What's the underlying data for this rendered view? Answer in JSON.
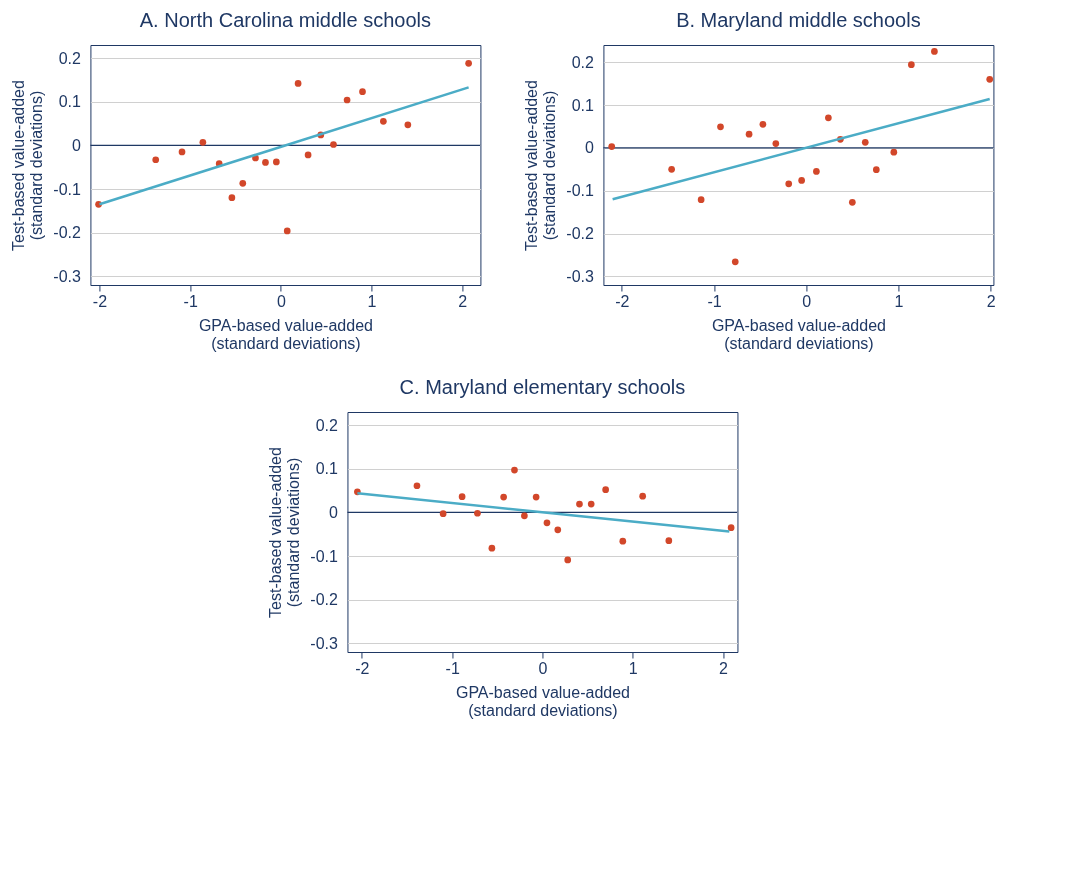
{
  "chart_data": [
    {
      "type": "scatter",
      "title": "A. North Carolina middle schools",
      "xlabel": "GPA-based value-added\n(standard deviations)",
      "ylabel": "Test-based value-added\n(standard deviations)",
      "xlim": [
        -2.1,
        2.2
      ],
      "xticks": [
        -2,
        -1,
        0,
        1,
        2
      ],
      "ylim": [
        -0.32,
        0.23
      ],
      "yticks": [
        -0.3,
        -0.2,
        -0.1,
        0,
        0.1,
        0.2
      ],
      "grid": "y",
      "marker": "circle",
      "ref_lines": [
        {
          "axis": "y",
          "value": 0,
          "color": "#1f3864"
        }
      ],
      "series": [
        {
          "type": "scatter",
          "color": "#d2472a",
          "x": [
            -2.01,
            -1.38,
            -1.09,
            -0.86,
            -0.68,
            -0.54,
            -0.42,
            -0.28,
            -0.17,
            -0.05,
            0.07,
            0.19,
            0.3,
            0.44,
            0.58,
            0.73,
            0.9,
            1.13,
            1.4,
            2.07
          ],
          "values": [
            -0.135,
            -0.033,
            -0.015,
            0.007,
            -0.042,
            -0.12,
            -0.087,
            -0.029,
            -0.039,
            -0.038,
            -0.196,
            0.142,
            -0.022,
            0.024,
            0.002,
            0.104,
            0.123,
            0.055,
            0.047,
            0.188
          ]
        },
        {
          "type": "line",
          "marker": "none",
          "color": "#4bacc6",
          "x": [
            -2.0,
            2.07
          ],
          "values": [
            -0.135,
            0.133
          ]
        }
      ]
    },
    {
      "type": "scatter",
      "title": "B. Maryland middle schools",
      "xlabel": "GPA-based value-added\n(standard deviations)",
      "ylabel": "Test-based value-added\n(standard deviations)",
      "xlim": [
        -2.2,
        2.03
      ],
      "xticks": [
        -2,
        -1,
        0,
        1,
        2
      ],
      "ylim": [
        -0.32,
        0.24
      ],
      "yticks": [
        -0.3,
        -0.2,
        -0.1,
        0,
        0.1,
        0.2
      ],
      "grid": "y",
      "marker": "circle",
      "ref_lines": [
        {
          "axis": "y",
          "value": 0,
          "color": "#1f3864"
        }
      ],
      "series": [
        {
          "type": "scatter",
          "color": "#d2472a",
          "x": [
            -2.11,
            -1.46,
            -1.14,
            -0.93,
            -0.77,
            -0.62,
            -0.47,
            -0.33,
            -0.19,
            -0.05,
            0.11,
            0.24,
            0.37,
            0.5,
            0.64,
            0.76,
            0.95,
            1.14,
            1.39,
            1.99
          ],
          "values": [
            0.003,
            -0.05,
            -0.121,
            0.049,
            -0.266,
            0.032,
            0.055,
            0.01,
            -0.084,
            -0.076,
            -0.055,
            0.07,
            0.02,
            -0.127,
            0.013,
            -0.051,
            -0.01,
            0.194,
            0.225,
            0.16
          ]
        },
        {
          "type": "line",
          "marker": "none",
          "color": "#4bacc6",
          "x": [
            -2.1,
            1.99
          ],
          "values": [
            -0.12,
            0.114
          ]
        }
      ]
    },
    {
      "type": "scatter",
      "title": "C. Maryland elementary schools",
      "xlabel": "GPA-based value-added\n(standard deviations)",
      "ylabel": "Test-based value-added\n(standard deviations)",
      "xlim": [
        -2.16,
        2.16
      ],
      "xticks": [
        -2,
        -1,
        0,
        1,
        2
      ],
      "ylim": [
        -0.32,
        0.23
      ],
      "yticks": [
        -0.3,
        -0.2,
        -0.1,
        0,
        0.1,
        0.2
      ],
      "grid": "y",
      "marker": "circle",
      "ref_lines": [
        {
          "axis": "y",
          "value": 0,
          "color": "#1f3864"
        }
      ],
      "series": [
        {
          "type": "scatter",
          "color": "#d2472a",
          "x": [
            -2.05,
            -1.39,
            -1.1,
            -0.89,
            -0.72,
            -0.56,
            -0.43,
            -0.31,
            -0.2,
            -0.07,
            0.05,
            0.17,
            0.28,
            0.41,
            0.54,
            0.7,
            0.89,
            1.11,
            1.4,
            2.09
          ],
          "values": [
            0.047,
            0.061,
            -0.003,
            0.036,
            -0.002,
            -0.082,
            0.035,
            0.097,
            -0.008,
            0.035,
            -0.024,
            -0.04,
            -0.109,
            0.019,
            0.019,
            0.052,
            -0.066,
            0.037,
            -0.065,
            -0.035
          ]
        },
        {
          "type": "line",
          "marker": "none",
          "color": "#4bacc6",
          "x": [
            -2.05,
            2.07
          ],
          "values": [
            0.044,
            -0.044
          ]
        }
      ]
    }
  ]
}
